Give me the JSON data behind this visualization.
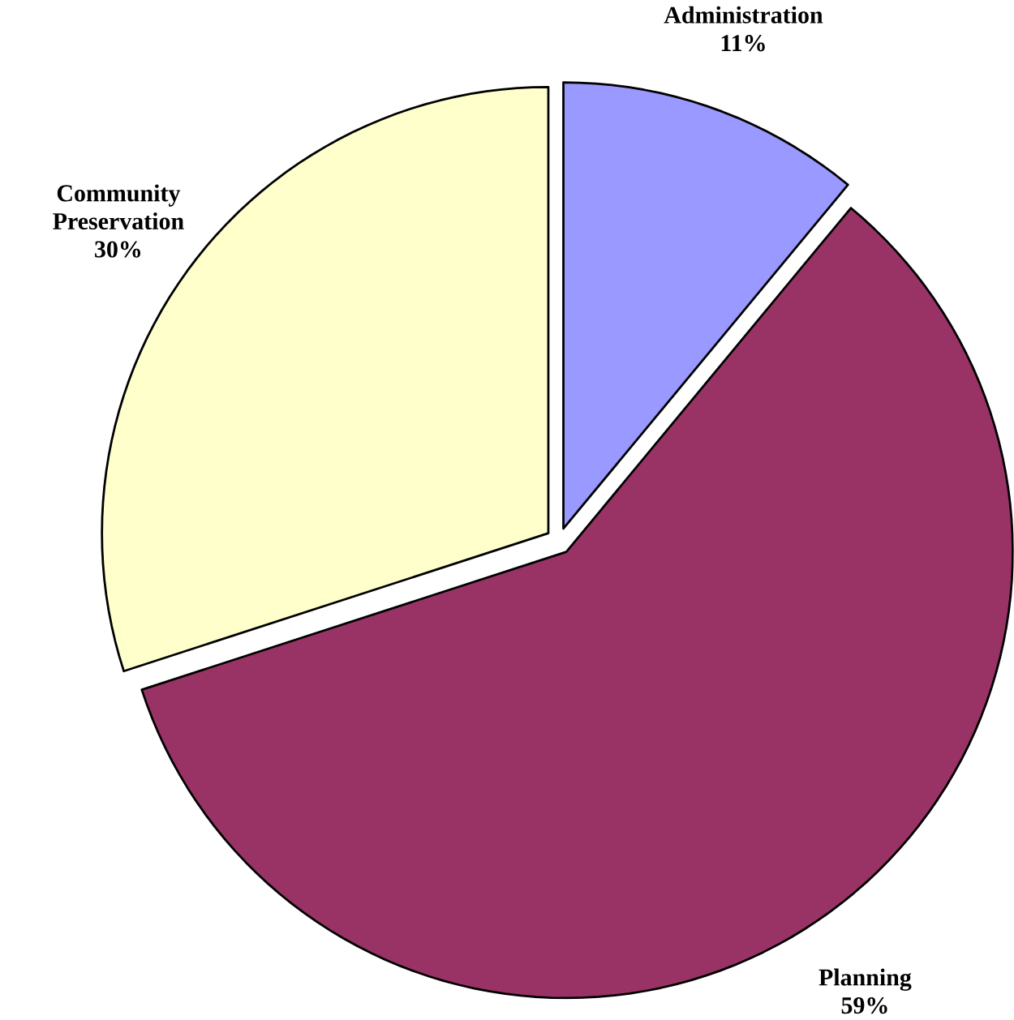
{
  "chart_data": {
    "type": "pie",
    "categories": [
      "Administration",
      "Planning",
      "Community Preservation"
    ],
    "values": [
      11,
      59,
      30
    ],
    "colors": [
      "#9999ff",
      "#993366",
      "#ffffcc"
    ],
    "value_labels": [
      "11%",
      "59%",
      "30%"
    ]
  }
}
